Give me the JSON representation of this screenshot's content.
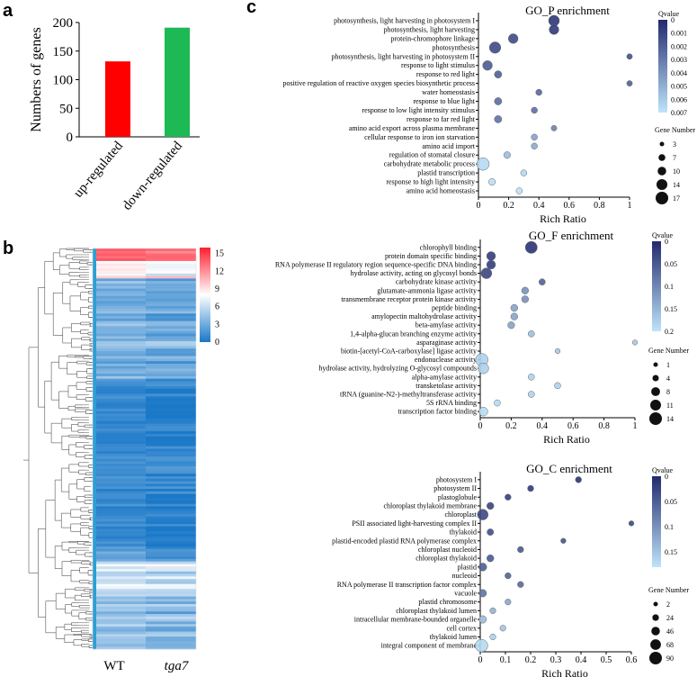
{
  "panel_labels": {
    "a": "a",
    "b": "b",
    "c": "c"
  },
  "chart_data": [
    {
      "id": "a",
      "type": "bar",
      "categories": [
        "up-regulated",
        "down-regulated"
      ],
      "values": [
        132,
        191
      ],
      "colors": [
        "#ff0000",
        "#1db954"
      ],
      "ylabel": "Numbers of genes",
      "xlabel": "",
      "ylim": [
        0,
        200
      ],
      "yticks": [
        0,
        50,
        100,
        150,
        200
      ]
    },
    {
      "id": "b",
      "type": "heatmap",
      "columns": [
        "WT",
        "tga7"
      ],
      "colorbar_ticks": [
        0,
        3,
        6,
        9,
        12,
        15
      ],
      "colorbar_range": [
        0,
        16
      ],
      "color_low": "#1a78c8",
      "color_mid": "#ffffff",
      "color_high": "#ff2030"
    },
    {
      "id": "GO_P",
      "type": "scatter",
      "title": "GO_P enrichment",
      "xlabel": "Rich Ratio",
      "xlim": [
        0,
        1
      ],
      "xticks": [
        "0",
        "0.2",
        "0.4",
        "0.6",
        "0.8",
        "1"
      ],
      "qvalue_title": "Qvalue",
      "qvalue_ticks": [
        "0",
        "0.001",
        "0.002",
        "0.003",
        "0.004",
        "0.005",
        "0.006",
        "0.007"
      ],
      "qvalue_range": [
        0,
        0.007
      ],
      "size_title": "Gene Number",
      "size_legend": [
        3,
        7,
        10,
        14,
        17
      ],
      "size_range": [
        3,
        17
      ],
      "terms": [
        {
          "name": "photosynthesis, light harvesting in photosystem I",
          "x": 0.5,
          "size": 14,
          "q": 0.0005
        },
        {
          "name": "photosynthesis, light harvesting",
          "x": 0.5,
          "size": 12,
          "q": 0.0006
        },
        {
          "name": "protein-chromophore linkage",
          "x": 0.23,
          "size": 12,
          "q": 0.0012
        },
        {
          "name": "photosynthesis",
          "x": 0.11,
          "size": 15,
          "q": 0.0012
        },
        {
          "name": "photosynthesis, light harvesting in photosystem II",
          "x": 1.0,
          "size": 5,
          "q": 0.0015
        },
        {
          "name": "response to light stimulus",
          "x": 0.06,
          "size": 12,
          "q": 0.0018
        },
        {
          "name": "response to red light",
          "x": 0.13,
          "size": 8,
          "q": 0.002
        },
        {
          "name": "positive regulation of reactive oxygen species biosynthetic process",
          "x": 1.0,
          "size": 5,
          "q": 0.0021
        },
        {
          "name": "water homeostasis",
          "x": 0.4,
          "size": 6,
          "q": 0.0023
        },
        {
          "name": "response to blue light",
          "x": 0.13,
          "size": 8,
          "q": 0.0025
        },
        {
          "name": "response to low light intensity stimulus",
          "x": 0.37,
          "size": 6,
          "q": 0.0026
        },
        {
          "name": "response to far red light",
          "x": 0.13,
          "size": 8,
          "q": 0.0027
        },
        {
          "name": "amino acid export across plasma membrane",
          "x": 0.5,
          "size": 5,
          "q": 0.0033
        },
        {
          "name": "cellular response to iron ion starvation",
          "x": 0.37,
          "size": 6,
          "q": 0.0045
        },
        {
          "name": "amino acid import",
          "x": 0.37,
          "size": 6,
          "q": 0.0048
        },
        {
          "name": "regulation of stomatal closure",
          "x": 0.19,
          "size": 7,
          "q": 0.0055
        },
        {
          "name": "carbohydrate metabolic process",
          "x": 0.03,
          "size": 17,
          "q": 0.0066
        },
        {
          "name": "plastid transcription",
          "x": 0.3,
          "size": 6,
          "q": 0.0066
        },
        {
          "name": "response to high light intensity",
          "x": 0.09,
          "size": 7,
          "q": 0.0068
        },
        {
          "name": "amino acid homeostasis",
          "x": 0.27,
          "size": 6,
          "q": 0.0069
        }
      ]
    },
    {
      "id": "GO_F",
      "type": "scatter",
      "title": "GO_F enrichment",
      "xlabel": "Rich Ratio",
      "xlim": [
        0,
        1
      ],
      "xticks": [
        "0",
        "0.2",
        "0.4",
        "0.6",
        "0.8",
        "1"
      ],
      "qvalue_title": "Qvalue",
      "qvalue_ticks": [
        "0",
        "0.05",
        "0.1",
        "0.15",
        "0.2"
      ],
      "qvalue_range": [
        0,
        0.2
      ],
      "size_title": "Gene Number",
      "size_legend": [
        1,
        4,
        8,
        11,
        14
      ],
      "size_range": [
        1,
        14
      ],
      "terms": [
        {
          "name": "chlorophyll binding",
          "x": 0.33,
          "size": 13,
          "q": 0.01
        },
        {
          "name": "protein domain specific binding",
          "x": 0.07,
          "size": 8,
          "q": 0.02
        },
        {
          "name": "RNA polymerase II regulatory region sequence-specific DNA binding",
          "x": 0.07,
          "size": 8,
          "q": 0.02
        },
        {
          "name": "hydrolase activity, acting on glycosyl bonds",
          "x": 0.04,
          "size": 11,
          "q": 0.03
        },
        {
          "name": "carbohydrate kinase activity",
          "x": 0.4,
          "size": 4,
          "q": 0.06
        },
        {
          "name": "glutamate-ammonia ligase activity",
          "x": 0.29,
          "size": 5,
          "q": 0.11
        },
        {
          "name": "transmembrane receptor protein kinase activity",
          "x": 0.29,
          "size": 5,
          "q": 0.11
        },
        {
          "name": "peptide binding",
          "x": 0.22,
          "size": 5,
          "q": 0.13
        },
        {
          "name": "amylopectin maltohydrolase activity",
          "x": 0.22,
          "size": 5,
          "q": 0.13
        },
        {
          "name": "beta-amylase activity",
          "x": 0.2,
          "size": 5,
          "q": 0.13
        },
        {
          "name": "1,4-alpha-glucan branching enzyme activity",
          "x": 0.33,
          "size": 4,
          "q": 0.16
        },
        {
          "name": "asparaginase activity",
          "x": 1.0,
          "size": 2,
          "q": 0.17
        },
        {
          "name": "biotin-[acetyl-CoA-carboxylase] ligase activity",
          "x": 0.5,
          "size": 2,
          "q": 0.17
        },
        {
          "name": "endonuclease activity",
          "x": 0.01,
          "size": 14,
          "q": 0.18
        },
        {
          "name": "hydrolase activity, hydrolyzing O-glycosyl compounds",
          "x": 0.02,
          "size": 11,
          "q": 0.18
        },
        {
          "name": "alpha-amylase activity",
          "x": 0.33,
          "size": 4,
          "q": 0.18
        },
        {
          "name": "transketolase activity",
          "x": 0.5,
          "size": 4,
          "q": 0.18
        },
        {
          "name": "tRNA (guanine-N2-)-methyltransferase activity",
          "x": 0.33,
          "size": 4,
          "q": 0.18
        },
        {
          "name": "5S rRNA binding",
          "x": 0.11,
          "size": 4,
          "q": 0.19
        },
        {
          "name": "transcription factor binding",
          "x": 0.02,
          "size": 8,
          "q": 0.19
        }
      ]
    },
    {
      "id": "GO_C",
      "type": "scatter",
      "title": "GO_C enrichment",
      "xlabel": "Rich Ratio",
      "xlim": [
        0,
        0.6
      ],
      "xticks": [
        "0",
        "0.1",
        "0.2",
        "0.3",
        "0.4",
        "0.5",
        "0.6"
      ],
      "qvalue_title": "Qvalue",
      "qvalue_ticks": [
        "0",
        "0.05",
        "0.1",
        "0.15"
      ],
      "qvalue_range": [
        0,
        0.18
      ],
      "size_title": "Gene Number",
      "size_legend": [
        2,
        24,
        46,
        68,
        90
      ],
      "size_range": [
        2,
        90
      ],
      "terms": [
        {
          "name": "photosystem I",
          "x": 0.39,
          "size": 20,
          "q": 0.01
        },
        {
          "name": "photosystem II",
          "x": 0.2,
          "size": 20,
          "q": 0.015
        },
        {
          "name": "plastoglobule",
          "x": 0.11,
          "size": 20,
          "q": 0.02
        },
        {
          "name": "chloroplast thylakoid membrane",
          "x": 0.04,
          "size": 30,
          "q": 0.025
        },
        {
          "name": "chloroplast",
          "x": 0.01,
          "size": 70,
          "q": 0.03
        },
        {
          "name": "PSII associated light-harvesting complex II",
          "x": 0.6,
          "size": 10,
          "q": 0.03
        },
        {
          "name": "thylakoid",
          "x": 0.04,
          "size": 25,
          "q": 0.035
        },
        {
          "name": "plastid-encoded plastid RNA polymerase complex",
          "x": 0.33,
          "size": 10,
          "q": 0.04
        },
        {
          "name": "chloroplast nucleoid",
          "x": 0.16,
          "size": 20,
          "q": 0.045
        },
        {
          "name": "chloroplast thylakoid",
          "x": 0.04,
          "size": 30,
          "q": 0.045
        },
        {
          "name": "plastid",
          "x": 0.01,
          "size": 40,
          "q": 0.05
        },
        {
          "name": "nucleoid",
          "x": 0.11,
          "size": 20,
          "q": 0.055
        },
        {
          "name": "RNA polymerase II transcription factor complex",
          "x": 0.16,
          "size": 20,
          "q": 0.06
        },
        {
          "name": "vacuole",
          "x": 0.01,
          "size": 35,
          "q": 0.07
        },
        {
          "name": "plastid chromosome",
          "x": 0.11,
          "size": 18,
          "q": 0.12
        },
        {
          "name": "chloroplast thylakoid lumen",
          "x": 0.05,
          "size": 18,
          "q": 0.13
        },
        {
          "name": "intracellular membrane-bounded organelle",
          "x": 0.01,
          "size": 35,
          "q": 0.14
        },
        {
          "name": "cell cortex",
          "x": 0.09,
          "size": 18,
          "q": 0.15
        },
        {
          "name": "thylakoid lumen",
          "x": 0.05,
          "size": 18,
          "q": 0.16
        },
        {
          "name": "integral component of membrane",
          "x": 0.005,
          "size": 90,
          "q": 0.17
        }
      ]
    }
  ]
}
